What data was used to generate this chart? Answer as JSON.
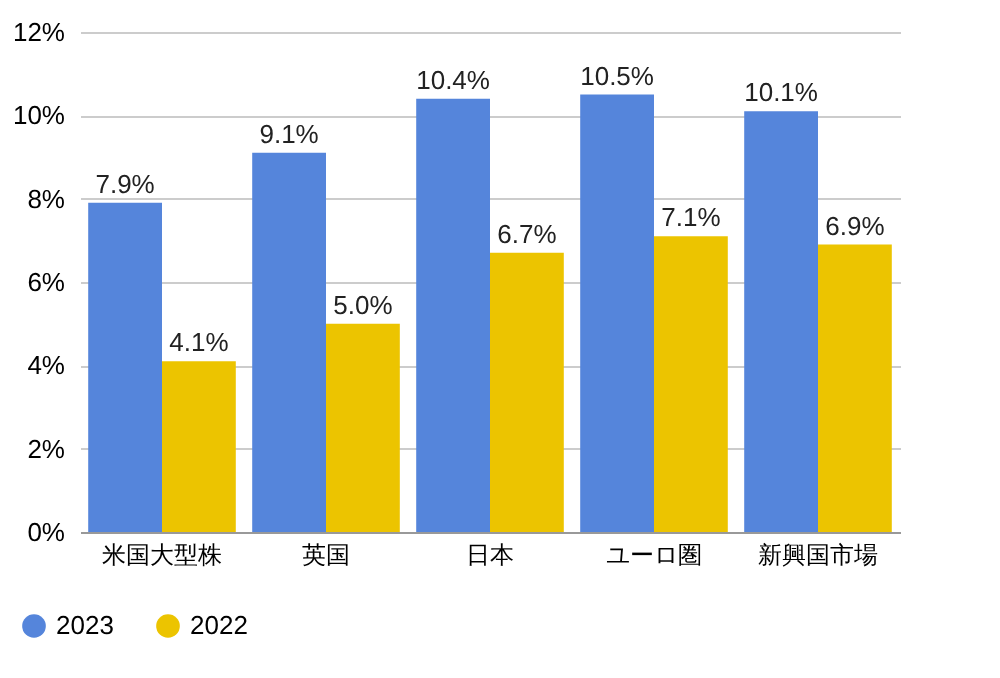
{
  "chart_data": {
    "type": "bar",
    "categories": [
      "米国大型株",
      "英国",
      "日本",
      "ユーロ圏",
      "新興国市場"
    ],
    "series": [
      {
        "name": "2023",
        "color": "#5585db",
        "values": [
          7.9,
          9.1,
          10.4,
          10.5,
          10.1
        ],
        "value_labels": [
          "7.9%",
          "9.1%",
          "10.4%",
          "10.5%",
          "10.1%"
        ]
      },
      {
        "name": "2022",
        "color": "#ecc400",
        "values": [
          4.1,
          5.0,
          6.7,
          7.1,
          6.9
        ],
        "value_labels": [
          "4.1%",
          "5.0%",
          "6.7%",
          "7.1%",
          "6.9%"
        ]
      }
    ],
    "ylim": [
      0,
      12
    ],
    "yticks": [
      {
        "value": 0,
        "label": "0%"
      },
      {
        "value": 2,
        "label": "2%"
      },
      {
        "value": 4,
        "label": "4%"
      },
      {
        "value": 6,
        "label": "6%"
      },
      {
        "value": 8,
        "label": "8%"
      },
      {
        "value": 10,
        "label": "10%"
      },
      {
        "value": 12,
        "label": "12%"
      }
    ],
    "grid": "y",
    "legend": "bottom left"
  }
}
